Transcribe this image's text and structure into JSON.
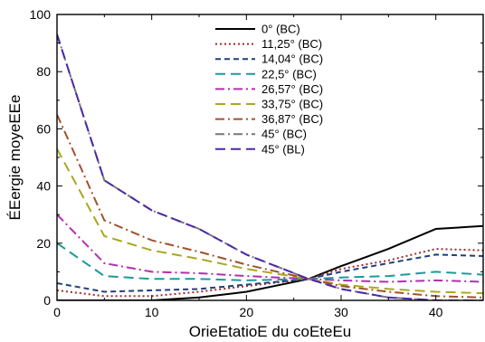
{
  "chart_data": {
    "type": "line",
    "title": "",
    "xlabel": "OrieEtatioE du coEteEu",
    "ylabel": "ÉEergie moyeEEe",
    "xlim": [
      0,
      45
    ],
    "ylim": [
      0,
      100
    ],
    "xticks": [
      0,
      10,
      20,
      30,
      40
    ],
    "yticks": [
      0,
      20,
      40,
      60,
      80,
      100
    ],
    "grid": false,
    "legend_position": "top-right",
    "x": [
      0,
      5,
      10,
      15,
      20,
      26.57,
      30,
      35,
      40,
      45
    ],
    "series": [
      {
        "name": "0° (BC)",
        "color": "#000000",
        "dash": "solid",
        "values": [
          0,
          0,
          0,
          1,
          3,
          7.5,
          12,
          18,
          25,
          26
        ]
      },
      {
        "name": "11,25° (BC)",
        "color": "#a52a2a",
        "dash": "dot",
        "values": [
          3.5,
          1.5,
          1.5,
          3,
          5,
          7.5,
          11,
          14,
          18,
          17.5
        ]
      },
      {
        "name": "14,04° (BC)",
        "color": "#1f3f7a",
        "dash": "dash",
        "values": [
          6,
          3,
          3.5,
          4,
          5.5,
          7.5,
          10,
          13,
          16,
          15.5
        ]
      },
      {
        "name": "22,5° (BC)",
        "color": "#1a9a9a",
        "dash": "longdash",
        "values": [
          20,
          8.5,
          7.5,
          7.5,
          7,
          7.5,
          8,
          8.5,
          10,
          9
        ]
      },
      {
        "name": "26,57° (BC)",
        "color": "#b030b0",
        "dash": "dashdot",
        "values": [
          30,
          13,
          10,
          9.5,
          8.5,
          7.5,
          7,
          6.5,
          7,
          6.5
        ]
      },
      {
        "name": "33,75° (BC)",
        "color": "#a8a820",
        "dash": "longdash",
        "values": [
          53,
          22.5,
          17.5,
          14.5,
          11,
          7.5,
          5.5,
          4,
          3,
          2.5
        ]
      },
      {
        "name": "36,87° (BC)",
        "color": "#a0522d",
        "dash": "dashdot",
        "values": [
          65,
          28,
          21,
          17,
          12.5,
          7.5,
          5,
          3,
          1.5,
          1
        ]
      },
      {
        "name": "45° (BC)",
        "color": "#777777",
        "dash": "dashdot",
        "values": [
          93,
          42,
          31.5,
          25,
          16,
          7.5,
          4,
          1,
          0,
          0
        ]
      },
      {
        "name": "45° (BL)",
        "color": "#4b2aa8",
        "dash": "longdash",
        "values": [
          93,
          42,
          31.5,
          25,
          16,
          7.5,
          4,
          1,
          0,
          0
        ]
      }
    ]
  }
}
